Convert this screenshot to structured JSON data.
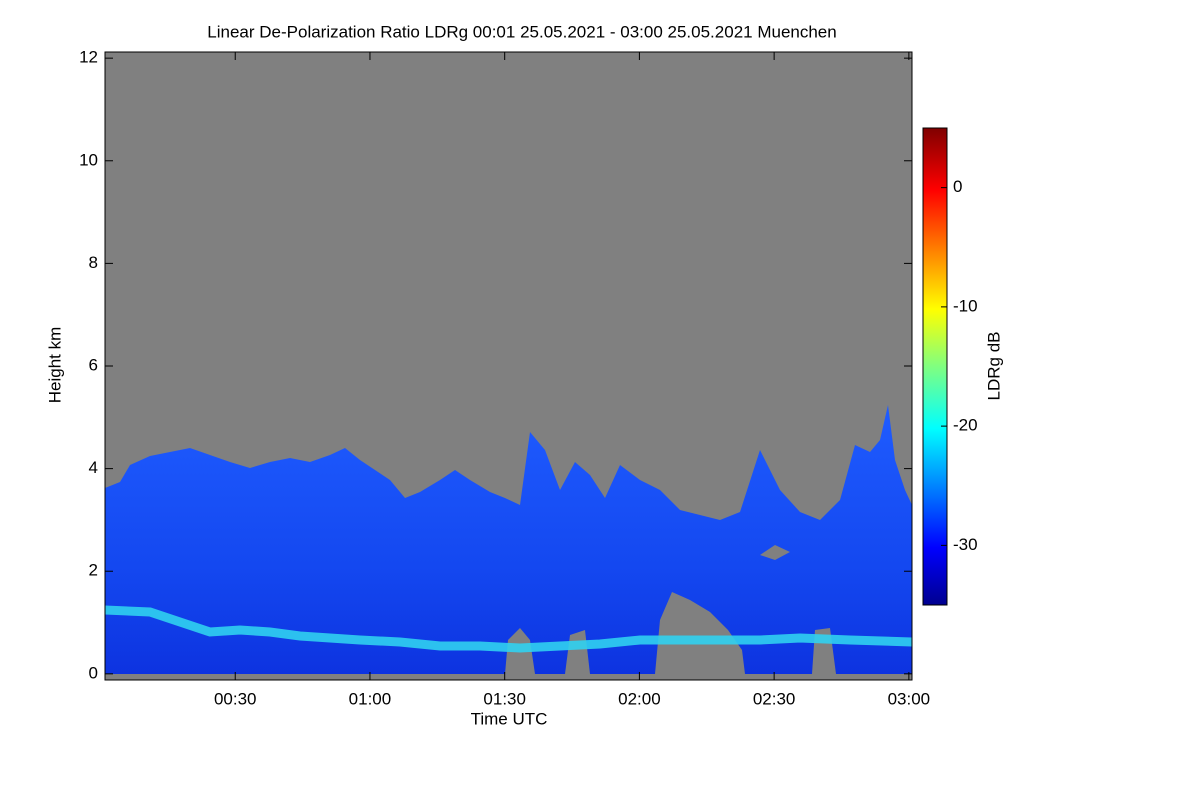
{
  "chart_data": {
    "type": "heatmap",
    "title": "Linear De-Polarization Ratio LDRg   00:01 25.05.2021 - 03:00 25.05.2021 Muenchen",
    "x_label": "Time UTC",
    "y_label": "Height km",
    "xlim": [
      1,
      180.7
    ],
    "xticks": [
      {
        "value": 30,
        "label": "00:30"
      },
      {
        "value": 60,
        "label": "01:00"
      },
      {
        "value": 90,
        "label": "01:30"
      },
      {
        "value": 120,
        "label": "02:00"
      },
      {
        "value": 150,
        "label": "02:30"
      },
      {
        "value": 180,
        "label": "03:00"
      }
    ],
    "ylim": [
      -0.12,
      12.12
    ],
    "yticks": [
      0,
      2,
      4,
      6,
      8,
      10,
      12
    ],
    "colorbar_label": "LDRg dB",
    "clim": [
      -35,
      5
    ],
    "cticks": [
      0,
      -10,
      -20,
      -30
    ]
  }
}
